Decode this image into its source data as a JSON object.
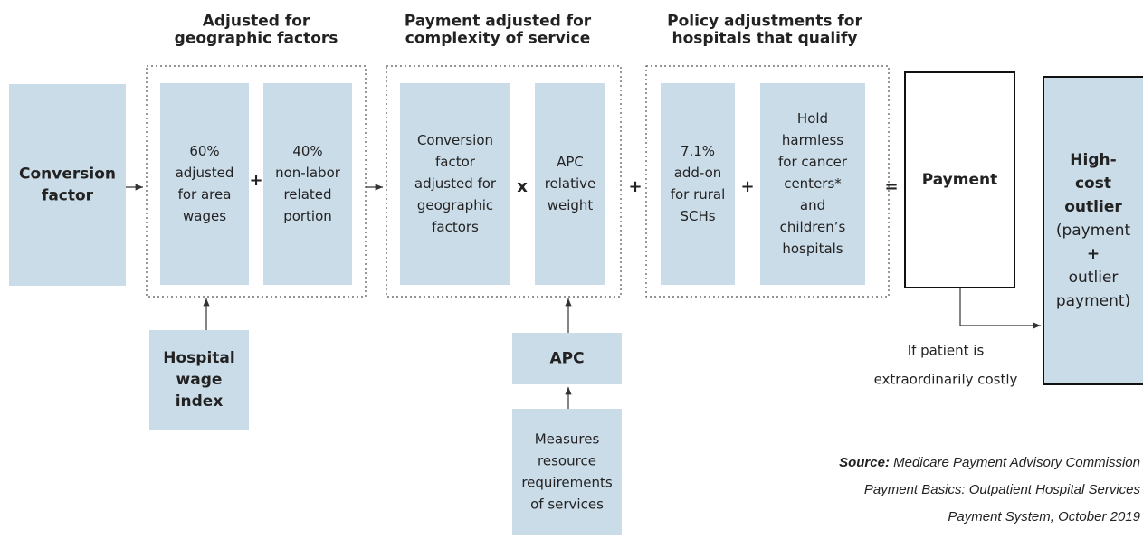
{
  "groups": [
    {
      "title": [
        "Adjusted for",
        "geographic factors"
      ]
    },
    {
      "title": [
        "Payment adjusted for",
        "complexity of service"
      ]
    },
    {
      "title": [
        "Policy adjustments for",
        "hospitals that qualify"
      ]
    }
  ],
  "nodes": [
    {
      "lines": [
        "Conversion",
        "factor"
      ]
    },
    {
      "lines": [
        "60%",
        "adjusted",
        "for area",
        "wages"
      ]
    },
    {
      "lines": [
        "40%",
        "non-labor",
        "related",
        "portion"
      ]
    },
    {
      "lines": [
        "Conversion",
        "factor",
        "adjusted for",
        "geographic",
        "factors"
      ]
    },
    {
      "lines": [
        "APC",
        "relative",
        "weight"
      ]
    },
    {
      "lines": [
        "7.1%",
        "add-on",
        "for rural",
        "SCHs"
      ]
    },
    {
      "lines": [
        "Hold",
        "harmless",
        "for cancer",
        "centers*",
        "and",
        "children’s",
        "hospitals"
      ]
    },
    {
      "lines": [
        "Payment"
      ]
    },
    {
      "lines": [
        "High-",
        "cost",
        "outlier",
        "(payment",
        "+",
        "outlier",
        "payment)"
      ]
    },
    {
      "lines": [
        "Hospital",
        "wage",
        "index"
      ]
    },
    {
      "lines": [
        "APC"
      ]
    },
    {
      "lines": [
        "Measures",
        "resource",
        "requirements",
        "of services"
      ]
    }
  ],
  "operators": [
    "+",
    "x",
    "+",
    "+",
    "="
  ],
  "annotation": [
    "If patient is",
    "extraordinarily costly"
  ],
  "source": {
    "label": "Source:",
    "lines": [
      "Medicare Payment Advisory Commission",
      "Payment Basics: Outpatient Hospital Services",
      "Payment System, October 2019"
    ]
  }
}
